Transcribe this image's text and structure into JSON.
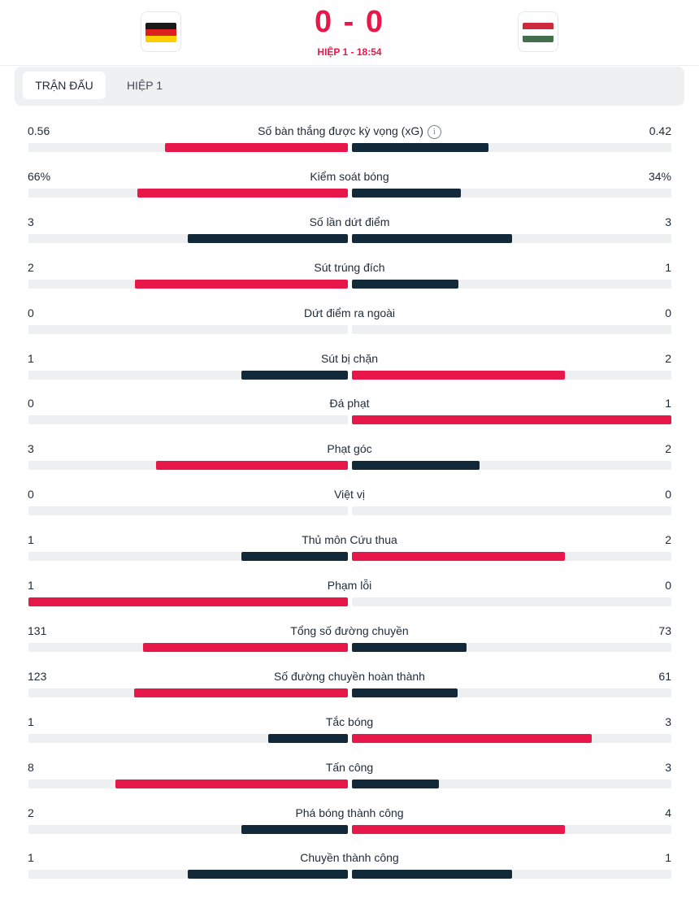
{
  "match": {
    "score": "0 - 0",
    "period": "HIỆP 1 - 18:54",
    "home_flag": "germany-flag",
    "away_flag": "hungary-flag"
  },
  "tabs": [
    {
      "label": "TRẬN ĐẤU",
      "active": true
    },
    {
      "label": "HIỆP 1",
      "active": false
    }
  ],
  "colors": {
    "leader": "#e8174a",
    "trailer": "#12293a",
    "track": "#eeeff1"
  },
  "stats": [
    {
      "label": "Số bàn thắng được kỳ vọng (xG)",
      "home": "0.56",
      "away": "0.42",
      "home_n": 0.56,
      "away_n": 0.42,
      "info": true
    },
    {
      "label": "Kiểm soát bóng",
      "home": "66%",
      "away": "34%",
      "home_n": 66,
      "away_n": 34
    },
    {
      "label": "Số lần dứt điểm",
      "home": "3",
      "away": "3",
      "home_n": 3,
      "away_n": 3
    },
    {
      "label": "Sút trúng đích",
      "home": "2",
      "away": "1",
      "home_n": 2,
      "away_n": 1
    },
    {
      "label": "Dứt điểm ra ngoài",
      "home": "0",
      "away": "0",
      "home_n": 0,
      "away_n": 0
    },
    {
      "label": "Sút bị chặn",
      "home": "1",
      "away": "2",
      "home_n": 1,
      "away_n": 2
    },
    {
      "label": "Đá phạt",
      "home": "0",
      "away": "1",
      "home_n": 0,
      "away_n": 1
    },
    {
      "label": "Phạt góc",
      "home": "3",
      "away": "2",
      "home_n": 3,
      "away_n": 2
    },
    {
      "label": "Việt vị",
      "home": "0",
      "away": "0",
      "home_n": 0,
      "away_n": 0
    },
    {
      "label": "Thủ môn Cứu thua",
      "home": "1",
      "away": "2",
      "home_n": 1,
      "away_n": 2
    },
    {
      "label": "Phạm lỗi",
      "home": "1",
      "away": "0",
      "home_n": 1,
      "away_n": 0
    },
    {
      "label": "Tổng số đường chuyền",
      "home": "131",
      "away": "73",
      "home_n": 131,
      "away_n": 73
    },
    {
      "label": "Số đường chuyền hoàn thành",
      "home": "123",
      "away": "61",
      "home_n": 123,
      "away_n": 61
    },
    {
      "label": "Tắc bóng",
      "home": "1",
      "away": "3",
      "home_n": 1,
      "away_n": 3
    },
    {
      "label": "Tấn công",
      "home": "8",
      "away": "3",
      "home_n": 8,
      "away_n": 3
    },
    {
      "label": "Phá bóng thành công",
      "home": "2",
      "away": "4",
      "home_n": 2,
      "away_n": 4
    },
    {
      "label": "Chuyền thành công",
      "home": "1",
      "away": "1",
      "home_n": 1,
      "away_n": 1
    }
  ]
}
